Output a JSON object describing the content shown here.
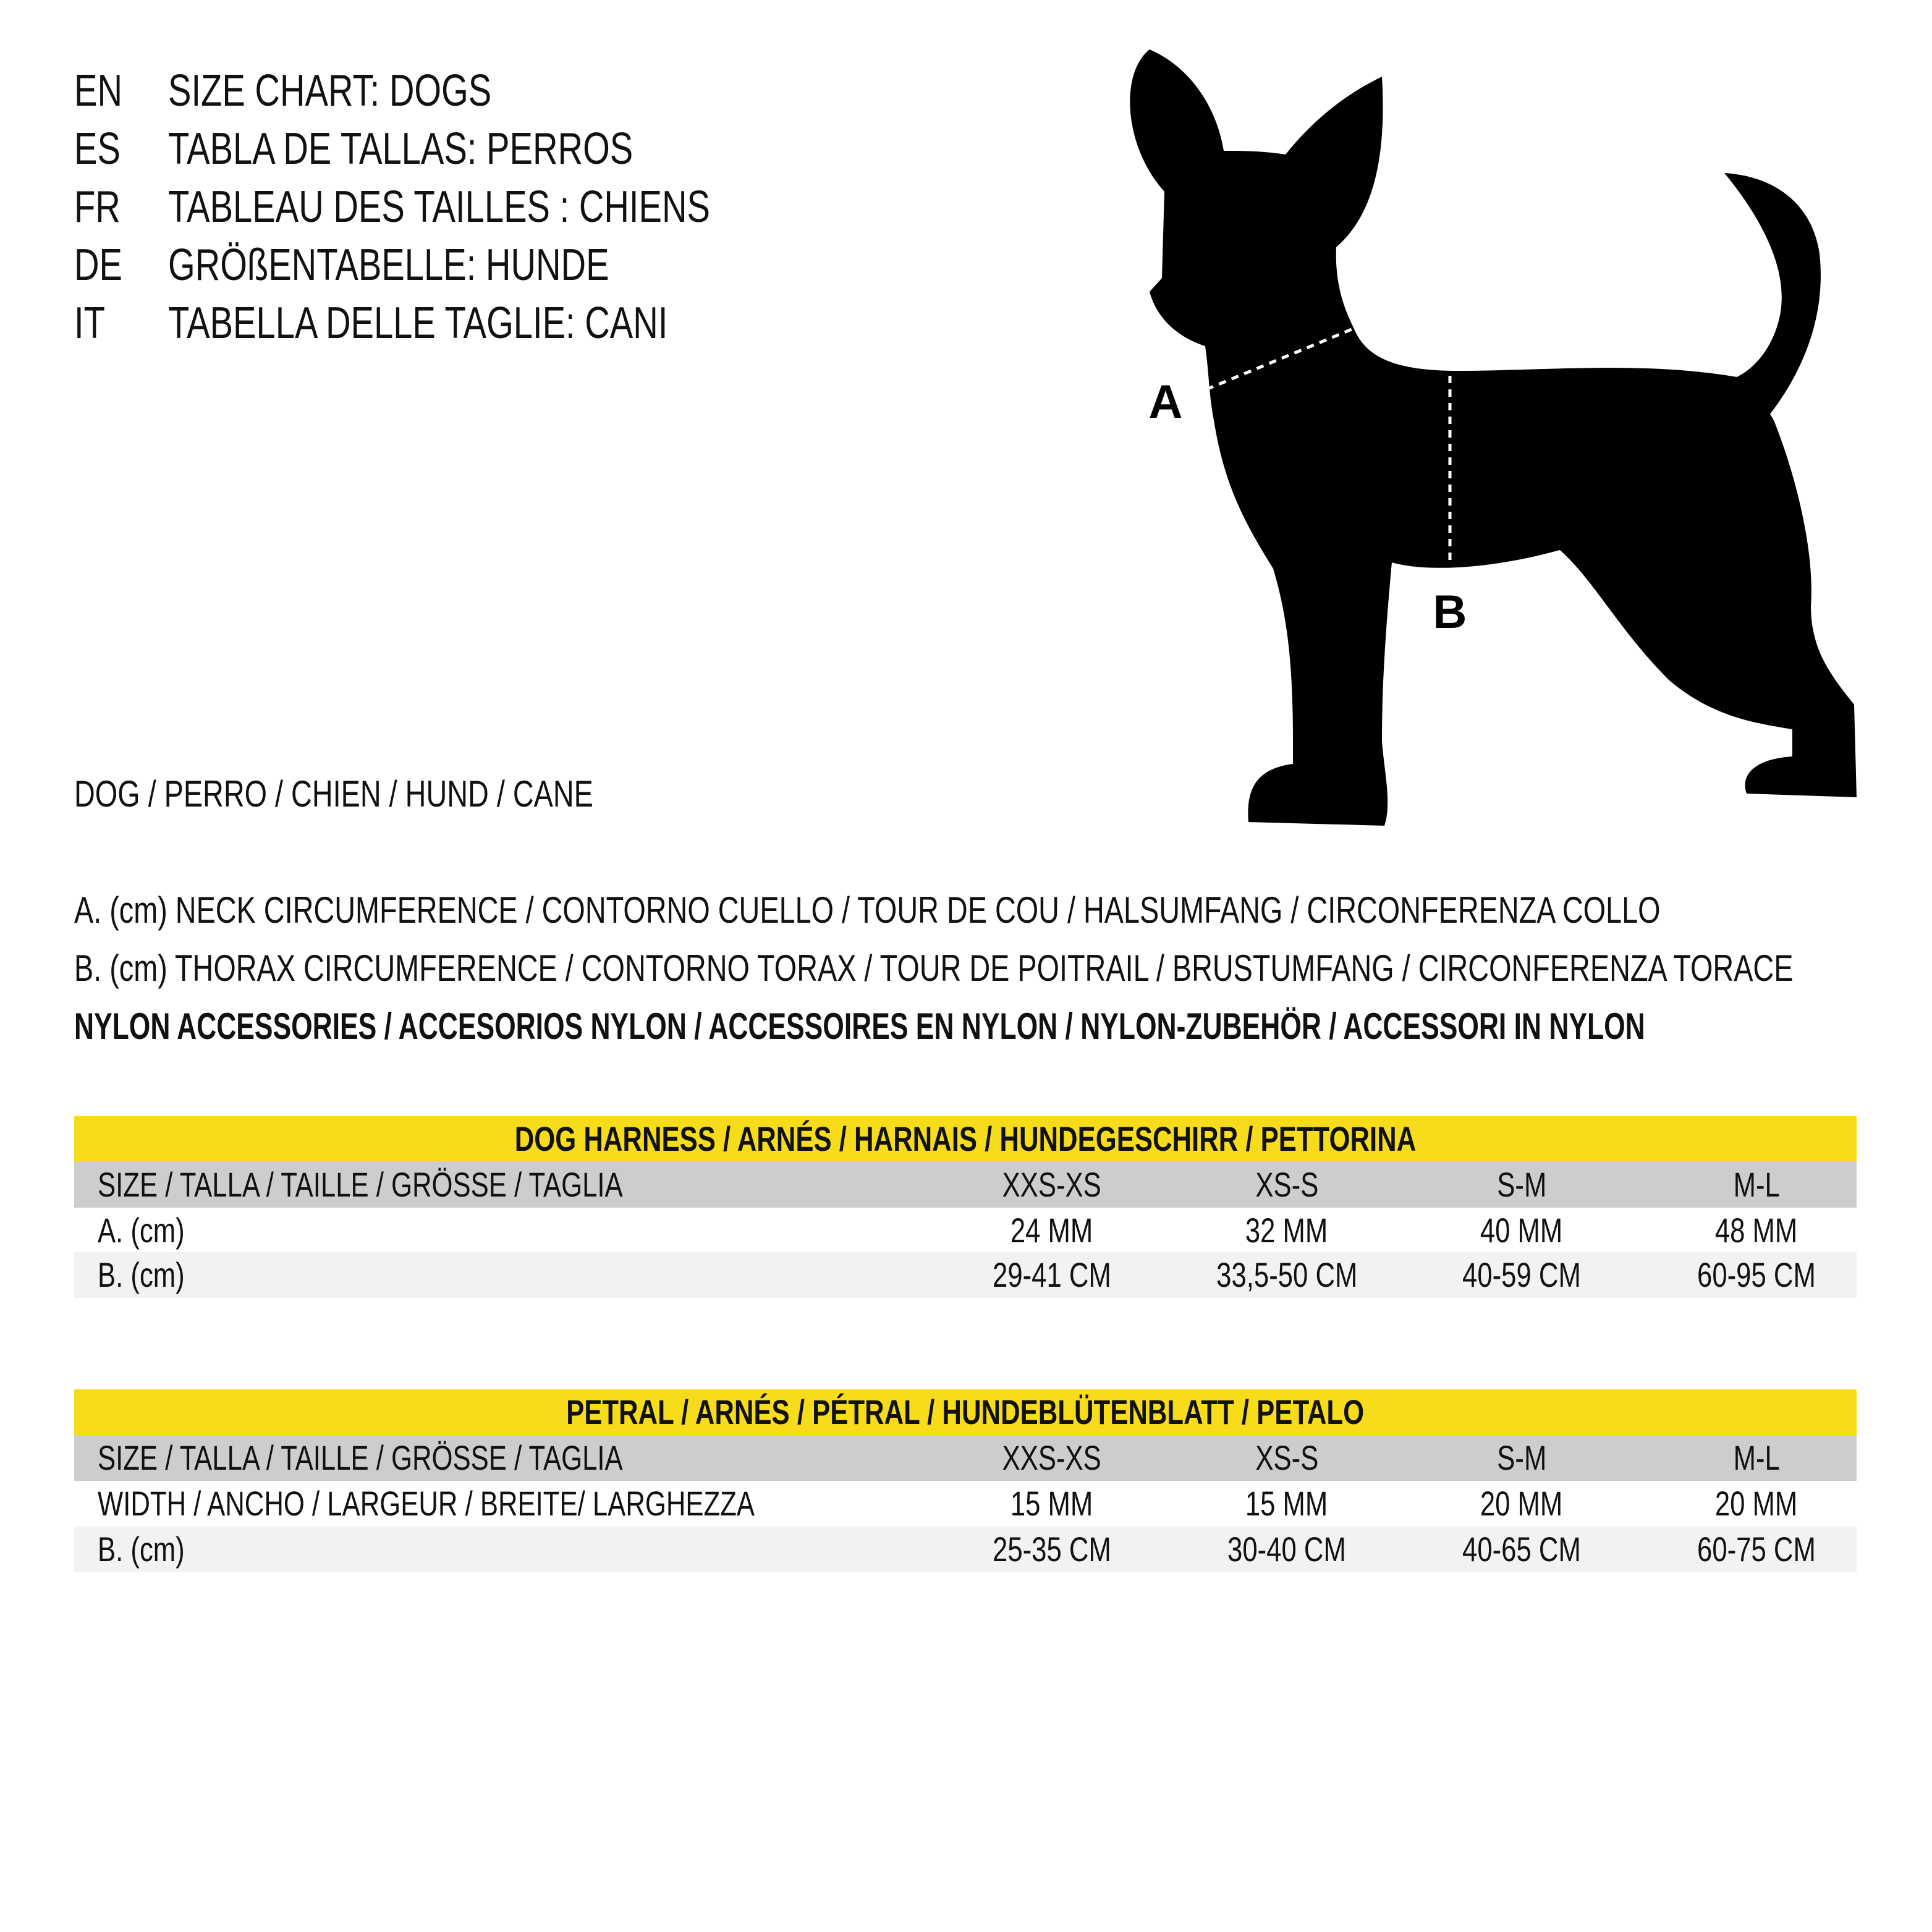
{
  "titles": [
    {
      "lang": "EN",
      "text": "SIZE CHART: DOGS"
    },
    {
      "lang": "ES",
      "text": "TABLA DE TALLAS: PERROS"
    },
    {
      "lang": "FR",
      "text": "TABLEAU DES TAILLES : CHIENS"
    },
    {
      "lang": "DE",
      "text": "GRÖßENTABELLE: HUNDE"
    },
    {
      "lang": "IT",
      "text": "TABELLA DELLE TAGLIE: CANI"
    }
  ],
  "diagram": {
    "label_a": "A",
    "label_b": "B",
    "silhouette_color": "#000000"
  },
  "animal_label": "DOG / PERRO / CHIEN / HUND / CANE",
  "legend": {
    "a": "A. (cm) NECK CIRCUMFERENCE / CONTORNO CUELLO / TOUR DE COU / HALSUMFANG / CIRCONFERENZA COLLO",
    "b": "B. (cm) THORAX CIRCUMFERENCE / CONTORNO TORAX / TOUR DE POITRAIL / BRUSTUMFANG / CIRCONFERENZA TORACE",
    "material": "NYLON ACCESSORIES / ACCESORIOS NYLON / ACCESSOIRES EN NYLON / NYLON-ZUBEHÖR / ACCESSORI IN NYLON"
  },
  "colors": {
    "header": "#f7dc1b",
    "size_row": "#cdcdcd",
    "alt_row": "#f2f2f2"
  },
  "tables": [
    {
      "title": "DOG HARNESS / ARNÉS / HARNAIS / HUNDEGESCHIRR / PETTORINA",
      "header": {
        "label": "SIZE / TALLA / TAILLE / GRÖSSE / TAGLIA",
        "cells": [
          "XXS-XS",
          "XS-S",
          "S-M",
          "M-L"
        ]
      },
      "rows": [
        {
          "label": "A. (cm)",
          "cells": [
            "24 MM",
            "32 MM",
            "40 MM",
            "48 MM"
          ]
        },
        {
          "label": "B. (cm)",
          "cells": [
            "29-41 CM",
            "33,5-50 CM",
            "40-59 CM",
            "60-95 CM"
          ]
        }
      ]
    },
    {
      "title": "PETRAL / ARNÉS  / PÉTRAL / HUNDEBLÜTENBLATT / PETALO",
      "header": {
        "label": "SIZE / TALLA / TAILLE / GRÖSSE / TAGLIA",
        "cells": [
          "XXS-XS",
          "XS-S",
          "S-M",
          "M-L"
        ]
      },
      "rows": [
        {
          "label": "WIDTH / ANCHO / LARGEUR / BREITE/ LARGHEZZA",
          "cells": [
            "15 MM",
            "15 MM",
            "20 MM",
            "20 MM"
          ]
        },
        {
          "label": "B. (cm)",
          "cells": [
            "25-35 CM",
            "30-40 CM",
            "40-65 CM",
            "60-75 CM"
          ]
        }
      ]
    }
  ]
}
